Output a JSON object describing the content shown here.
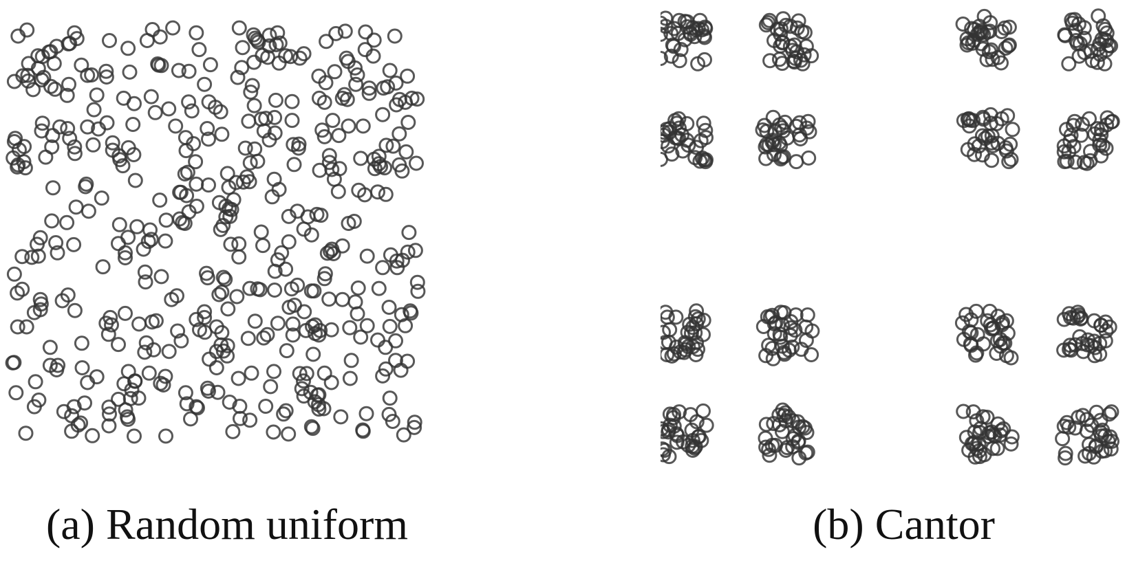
{
  "chart_data": [
    {
      "type": "scatter",
      "caption": "(a) Random uniform",
      "title": "",
      "xlabel": "",
      "ylabel": "",
      "xlim": [
        0,
        1
      ],
      "ylim": [
        0,
        1
      ],
      "axes_visible": false,
      "grid": false,
      "marker": "open-circle",
      "marker_color": "#333333",
      "distribution": "uniform",
      "n_points": 500,
      "x": [],
      "y": []
    },
    {
      "type": "scatter",
      "caption": "(b) Cantor",
      "title": "",
      "xlabel": "",
      "ylabel": "",
      "xlim": [
        0,
        1
      ],
      "ylim": [
        0,
        1
      ],
      "axes_visible": false,
      "grid": false,
      "marker": "open-circle",
      "marker_color": "#333333",
      "distribution": "cantor-dust",
      "cluster_centers_x": [
        0.05,
        0.28,
        0.72,
        0.94
      ],
      "cluster_centers_y": [
        0.06,
        0.28,
        0.72,
        0.94
      ],
      "n_points": 512,
      "x": [],
      "y": []
    }
  ]
}
